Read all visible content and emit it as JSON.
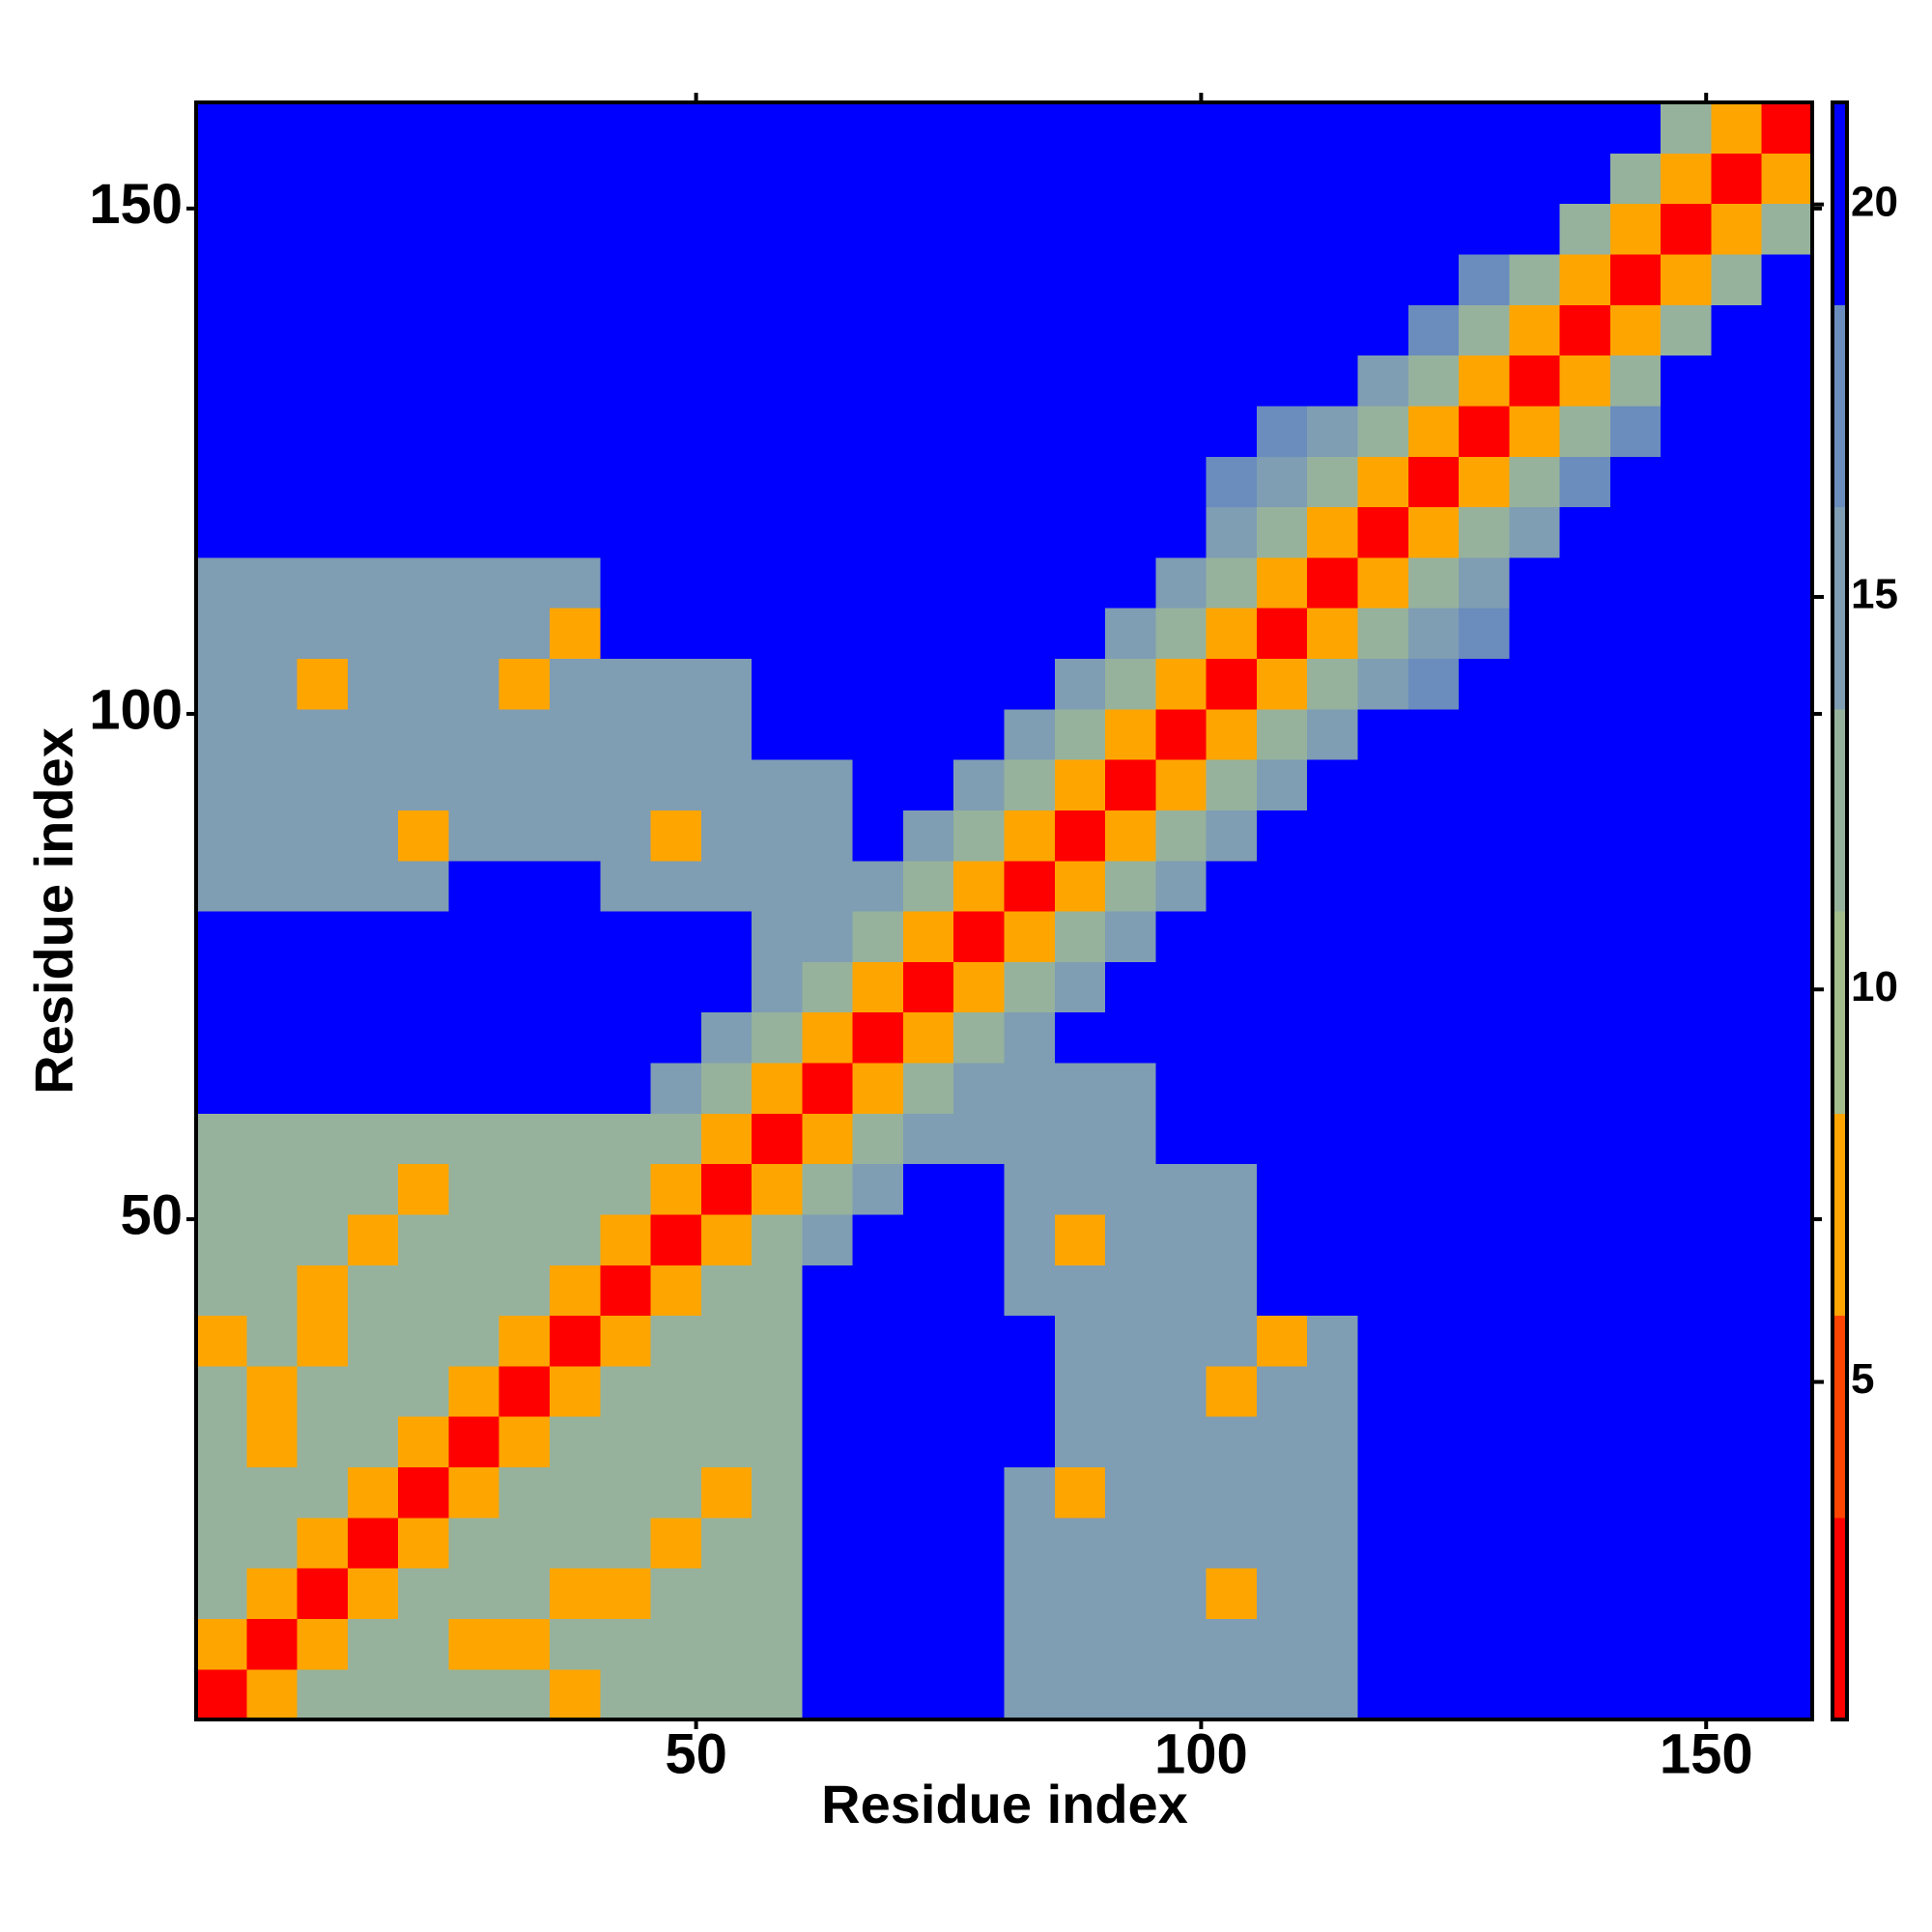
{
  "chart_data": {
    "type": "heatmap",
    "xlabel": "Residue index",
    "ylabel": "Residue index",
    "xbins": [
      0.5,
      5.5,
      10.5,
      15.5,
      20.5,
      25.5,
      30.5,
      35.5,
      40.5,
      45.5,
      50.5,
      55.5,
      60.5,
      65.5,
      70.5,
      75.5,
      80.5,
      85.5,
      90.5,
      95.5,
      100.5,
      105.5,
      110.5,
      115.5,
      120.5,
      125.5,
      130.5,
      135.5,
      140.5,
      145.5,
      150.5,
      155.5,
      160.5
    ],
    "ybins": [
      0.5,
      5.5,
      10.5,
      15.5,
      20.5,
      25.5,
      30.5,
      35.5,
      40.5,
      45.5,
      50.5,
      55.5,
      60.5,
      65.5,
      70.5,
      75.5,
      80.5,
      85.5,
      90.5,
      95.5,
      100.5,
      105.5,
      110.5,
      115.5,
      120.5,
      125.5,
      130.5,
      135.5,
      140.5,
      145.5,
      150.5,
      155.5,
      160.5
    ],
    "xlim": [
      0.5,
      160.5
    ],
    "ylim": [
      0.5,
      160.5
    ],
    "xticks": [
      50,
      100,
      150
    ],
    "yticks": [
      50,
      100,
      150
    ],
    "z": [
      [
        3,
        7,
        12,
        13,
        13,
        13,
        13,
        8,
        13,
        13,
        13,
        13,
        21,
        21,
        21,
        21,
        14,
        14,
        14,
        14,
        14,
        14,
        14,
        21,
        21,
        21,
        21,
        21,
        21,
        21,
        21,
        21
      ],
      [
        7,
        3,
        7,
        12,
        13,
        8,
        8,
        13,
        13,
        13,
        13,
        13,
        21,
        21,
        21,
        21,
        14,
        14,
        14,
        14,
        14,
        14,
        14,
        21,
        21,
        21,
        21,
        21,
        21,
        21,
        21,
        21
      ],
      [
        12,
        7,
        3,
        7,
        12,
        13,
        13,
        8,
        8,
        13,
        13,
        13,
        21,
        21,
        21,
        21,
        14,
        14,
        14,
        14,
        8,
        14,
        14,
        21,
        21,
        21,
        21,
        21,
        21,
        21,
        21,
        21
      ],
      [
        13,
        12,
        7,
        3,
        7,
        12,
        13,
        13,
        13,
        8,
        13,
        13,
        21,
        21,
        21,
        21,
        14,
        14,
        14,
        14,
        14,
        14,
        14,
        21,
        21,
        21,
        21,
        21,
        21,
        21,
        21,
        21
      ],
      [
        13,
        13,
        12,
        7,
        3,
        7,
        12,
        13,
        13,
        13,
        8,
        13,
        21,
        21,
        21,
        21,
        14,
        8,
        14,
        14,
        14,
        14,
        14,
        21,
        21,
        21,
        21,
        21,
        21,
        21,
        21,
        21
      ],
      [
        13,
        8,
        13,
        12,
        7,
        3,
        7,
        12,
        13,
        13,
        13,
        13,
        21,
        21,
        21,
        21,
        21,
        14,
        14,
        14,
        14,
        14,
        14,
        21,
        21,
        21,
        21,
        21,
        21,
        21,
        21,
        21
      ],
      [
        13,
        8,
        13,
        13,
        12,
        7,
        3,
        7,
        12,
        13,
        13,
        13,
        21,
        21,
        21,
        21,
        21,
        14,
        14,
        14,
        8,
        14,
        14,
        21,
        21,
        21,
        21,
        21,
        21,
        21,
        21,
        21
      ],
      [
        8,
        13,
        8,
        13,
        13,
        12,
        7,
        3,
        7,
        12,
        13,
        13,
        21,
        21,
        21,
        21,
        21,
        14,
        14,
        14,
        14,
        8,
        14,
        21,
        21,
        21,
        21,
        21,
        21,
        21,
        21,
        21
      ],
      [
        13,
        13,
        8,
        13,
        13,
        13,
        12,
        7,
        3,
        7,
        12,
        13,
        21,
        21,
        21,
        21,
        14,
        14,
        14,
        14,
        14,
        21,
        21,
        21,
        21,
        21,
        21,
        21,
        21,
        21,
        21,
        21
      ],
      [
        13,
        13,
        13,
        8,
        13,
        13,
        13,
        12,
        7,
        3,
        7,
        12,
        14,
        21,
        21,
        21,
        14,
        8,
        14,
        14,
        14,
        21,
        21,
        21,
        21,
        21,
        21,
        21,
        21,
        21,
        21,
        21
      ],
      [
        13,
        13,
        13,
        13,
        8,
        13,
        13,
        13,
        12,
        7,
        3,
        7,
        12,
        14,
        21,
        21,
        14,
        14,
        14,
        14,
        14,
        21,
        21,
        21,
        21,
        21,
        21,
        21,
        21,
        21,
        21,
        21
      ],
      [
        13,
        13,
        13,
        13,
        13,
        13,
        13,
        13,
        13,
        12,
        7,
        3,
        7,
        12,
        14,
        14,
        14,
        14,
        14,
        21,
        21,
        21,
        21,
        21,
        21,
        21,
        21,
        21,
        21,
        21,
        21,
        21
      ],
      [
        21,
        21,
        21,
        21,
        21,
        21,
        21,
        21,
        21,
        14,
        12,
        7,
        3,
        7,
        12,
        14,
        14,
        14,
        14,
        21,
        21,
        21,
        21,
        21,
        21,
        21,
        21,
        21,
        21,
        21,
        21,
        21
      ],
      [
        21,
        21,
        21,
        21,
        21,
        21,
        21,
        21,
        21,
        21,
        14,
        12,
        7,
        3,
        7,
        12,
        14,
        21,
        21,
        21,
        21,
        21,
        21,
        21,
        21,
        21,
        21,
        21,
        21,
        21,
        21,
        21
      ],
      [
        21,
        21,
        21,
        21,
        21,
        21,
        21,
        21,
        21,
        21,
        21,
        14,
        12,
        7,
        3,
        7,
        12,
        14,
        21,
        21,
        21,
        21,
        21,
        21,
        21,
        21,
        21,
        21,
        21,
        21,
        21,
        21
      ],
      [
        21,
        21,
        21,
        21,
        21,
        21,
        21,
        21,
        21,
        21,
        21,
        14,
        14,
        12,
        7,
        3,
        7,
        12,
        14,
        21,
        21,
        21,
        21,
        21,
        21,
        21,
        21,
        21,
        21,
        21,
        21,
        21
      ],
      [
        14,
        14,
        14,
        14,
        14,
        21,
        21,
        21,
        14,
        14,
        14,
        14,
        14,
        14,
        12,
        7,
        3,
        7,
        12,
        14,
        21,
        21,
        21,
        21,
        21,
        21,
        21,
        21,
        21,
        21,
        21,
        21
      ],
      [
        14,
        14,
        14,
        14,
        8,
        14,
        14,
        14,
        14,
        8,
        14,
        14,
        14,
        21,
        14,
        12,
        7,
        3,
        7,
        12,
        14,
        21,
        21,
        21,
        21,
        21,
        21,
        21,
        21,
        21,
        21,
        21
      ],
      [
        14,
        14,
        14,
        14,
        14,
        14,
        14,
        14,
        14,
        14,
        14,
        14,
        14,
        21,
        21,
        14,
        12,
        7,
        3,
        7,
        12,
        14,
        21,
        21,
        21,
        21,
        21,
        21,
        21,
        21,
        21,
        21
      ],
      [
        14,
        14,
        14,
        14,
        14,
        14,
        14,
        14,
        14,
        14,
        14,
        21,
        21,
        21,
        21,
        21,
        14,
        12,
        7,
        3,
        7,
        12,
        14,
        21,
        21,
        21,
        21,
        21,
        21,
        21,
        21,
        21
      ],
      [
        14,
        14,
        8,
        14,
        14,
        14,
        8,
        14,
        14,
        14,
        14,
        21,
        21,
        21,
        21,
        21,
        21,
        14,
        12,
        7,
        3,
        7,
        12,
        14,
        17,
        21,
        21,
        21,
        21,
        21,
        21,
        21
      ],
      [
        14,
        14,
        14,
        14,
        14,
        14,
        14,
        8,
        21,
        21,
        21,
        21,
        21,
        21,
        21,
        21,
        21,
        21,
        14,
        12,
        7,
        3,
        7,
        12,
        14,
        17,
        21,
        21,
        21,
        21,
        21,
        21
      ],
      [
        14,
        14,
        14,
        14,
        14,
        14,
        14,
        14,
        21,
        21,
        21,
        21,
        21,
        21,
        21,
        21,
        21,
        21,
        21,
        14,
        12,
        7,
        3,
        7,
        12,
        14,
        21,
        21,
        21,
        21,
        21,
        21
      ],
      [
        21,
        21,
        21,
        21,
        21,
        21,
        21,
        21,
        21,
        21,
        21,
        21,
        21,
        21,
        21,
        21,
        21,
        21,
        21,
        21,
        14,
        12,
        7,
        3,
        7,
        12,
        14,
        21,
        21,
        21,
        21,
        21
      ],
      [
        21,
        21,
        21,
        21,
        21,
        21,
        21,
        21,
        21,
        21,
        21,
        21,
        21,
        21,
        21,
        21,
        21,
        21,
        21,
        21,
        17,
        14,
        12,
        7,
        3,
        7,
        12,
        17,
        21,
        21,
        21,
        21
      ],
      [
        21,
        21,
        21,
        21,
        21,
        21,
        21,
        21,
        21,
        21,
        21,
        21,
        21,
        21,
        21,
        21,
        21,
        21,
        21,
        21,
        21,
        17,
        14,
        12,
        7,
        3,
        7,
        12,
        17,
        21,
        21,
        21
      ],
      [
        21,
        21,
        21,
        21,
        21,
        21,
        21,
        21,
        21,
        21,
        21,
        21,
        21,
        21,
        21,
        21,
        21,
        21,
        21,
        21,
        21,
        21,
        21,
        14,
        12,
        7,
        3,
        7,
        12,
        21,
        21,
        21
      ],
      [
        21,
        21,
        21,
        21,
        21,
        21,
        21,
        21,
        21,
        21,
        21,
        21,
        21,
        21,
        21,
        21,
        21,
        21,
        21,
        21,
        21,
        21,
        21,
        21,
        17,
        12,
        7,
        3,
        7,
        13,
        21,
        21
      ],
      [
        21,
        21,
        21,
        21,
        21,
        21,
        21,
        21,
        21,
        21,
        21,
        21,
        21,
        21,
        21,
        21,
        21,
        21,
        21,
        21,
        21,
        21,
        21,
        21,
        21,
        17,
        12,
        7,
        3,
        7,
        13,
        21
      ],
      [
        21,
        21,
        21,
        21,
        21,
        21,
        21,
        21,
        21,
        21,
        21,
        21,
        21,
        21,
        21,
        21,
        21,
        21,
        21,
        21,
        21,
        21,
        21,
        21,
        21,
        21,
        21,
        13,
        7,
        3,
        7,
        13
      ],
      [
        21,
        21,
        21,
        21,
        21,
        21,
        21,
        21,
        21,
        21,
        21,
        21,
        21,
        21,
        21,
        21,
        21,
        21,
        21,
        21,
        21,
        21,
        21,
        21,
        21,
        21,
        21,
        21,
        13,
        7,
        3,
        7
      ],
      [
        21,
        21,
        21,
        21,
        21,
        21,
        21,
        21,
        21,
        21,
        21,
        21,
        21,
        21,
        21,
        21,
        21,
        21,
        21,
        21,
        21,
        21,
        21,
        21,
        21,
        21,
        21,
        21,
        21,
        13,
        7,
        3
      ]
    ],
    "colorbar": {
      "lim": [
        0.7,
        21.3
      ],
      "ticks": [
        5,
        10,
        15,
        20
      ],
      "colors": [
        "#ff0000",
        "#ff4500",
        "#ffa500",
        "#a3be8c",
        "#96b29c",
        "#7f9db3",
        "#6b8dbd",
        "#0000ff"
      ]
    }
  }
}
